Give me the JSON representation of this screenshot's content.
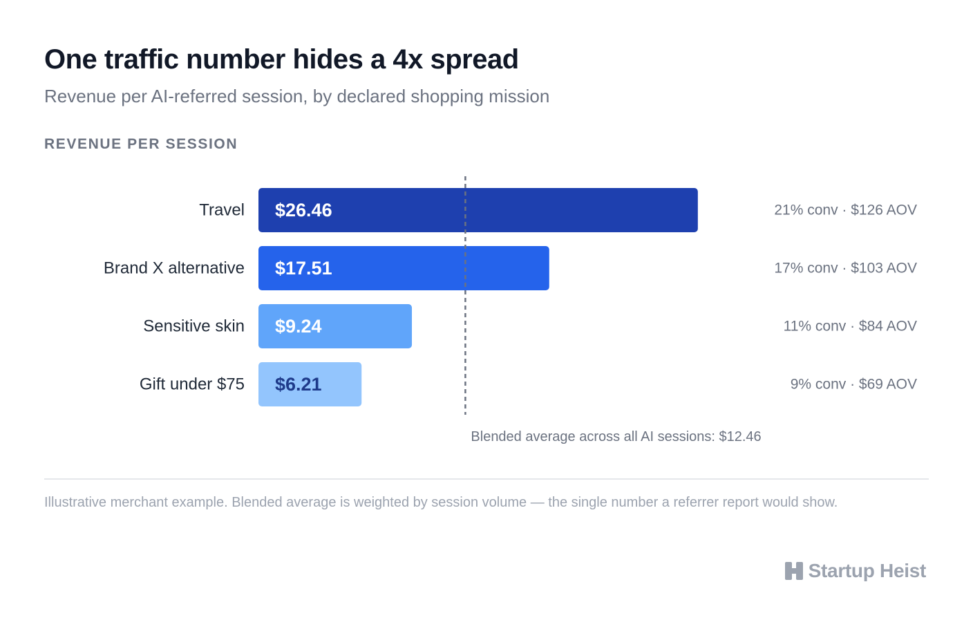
{
  "header": {
    "title": "One traffic number hides a 4x spread",
    "subtitle": "Revenue per AI-referred session, by declared shopping mission"
  },
  "section_label": "REVENUE PER SESSION",
  "chart_data": {
    "type": "bar",
    "orientation": "horizontal",
    "title": "One traffic number hides a 4x spread",
    "subtitle": "Revenue per AI-referred session, by declared shopping mission",
    "ylabel": "REVENUE PER SESSION",
    "categories": [
      "Travel",
      "Brand X alternative",
      "Sensitive skin",
      "Gift under $75"
    ],
    "values": [
      26.46,
      17.51,
      9.24,
      6.21
    ],
    "value_labels": [
      "$26.46",
      "$17.51",
      "$9.24",
      "$6.21"
    ],
    "side_notes": [
      "21% conv · $126 AOV",
      "17% conv · $103 AOV",
      "11% conv · $84 AOV",
      "9% conv · $69 AOV"
    ],
    "reference_line": {
      "value": 12.46,
      "label": "Blended average across all AI sessions: $12.46"
    },
    "xlim": [
      0,
      30
    ],
    "grid": false,
    "colors": {
      "bars": [
        "#1e40af",
        "#2563eb",
        "#60a5fa",
        "#93c5fd"
      ],
      "value_text": [
        "#ffffff",
        "#ffffff",
        "#ffffff",
        "#1e3a8a"
      ],
      "category_text": "#1f2937",
      "note_text": "#6b7280",
      "reference_line": "#6b7280"
    }
  },
  "footer": {
    "note": "Illustrative merchant example. Blended average is weighted by session volume — the single number a referrer report would show.",
    "brand": "Startup Heist"
  }
}
